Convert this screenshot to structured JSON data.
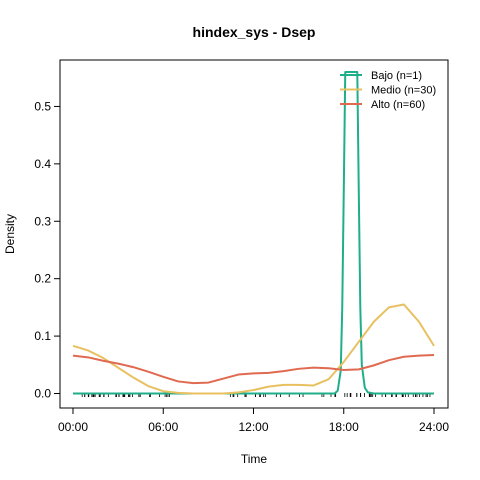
{
  "chart_data": {
    "type": "line",
    "title": "hindex_sys - Dsep",
    "xlabel": "Time",
    "ylabel": "Density",
    "xlim": [
      0,
      24
    ],
    "ylim": [
      0,
      0.56
    ],
    "x_ticks": [
      0,
      6,
      12,
      18,
      24
    ],
    "x_tick_labels": [
      "00:00",
      "06:00",
      "12:00",
      "18:00",
      "24:00"
    ],
    "y_ticks": [
      0.0,
      0.1,
      0.2,
      0.3,
      0.4,
      0.5
    ],
    "y_tick_labels": [
      "0.0",
      "0.1",
      "0.2",
      "0.3",
      "0.4",
      "0.5"
    ],
    "grid": false,
    "legend_position": "top-right",
    "series": [
      {
        "name": "Bajo (n=1)",
        "color": "#1fae8a",
        "x": [
          0,
          17.4,
          17.6,
          17.8,
          17.9,
          18.0,
          18.1,
          18.3,
          18.5,
          18.7,
          18.9,
          19.0,
          19.1,
          19.2,
          19.4,
          19.6,
          20.0,
          24
        ],
        "y": [
          0,
          0,
          0.005,
          0.04,
          0.15,
          0.35,
          0.56,
          0.56,
          0.56,
          0.56,
          0.56,
          0.35,
          0.15,
          0.05,
          0.01,
          0.002,
          0,
          0
        ]
      },
      {
        "name": "Medio (n=30)",
        "color": "#e8c060",
        "x": [
          0,
          1,
          2,
          3,
          4,
          5,
          6,
          7,
          8,
          9,
          10,
          11,
          12,
          13,
          14,
          15,
          16,
          17,
          18,
          19,
          20,
          21,
          22,
          23,
          24
        ],
        "y": [
          0.083,
          0.075,
          0.062,
          0.045,
          0.028,
          0.013,
          0.004,
          0.001,
          0.0,
          0.0,
          0.0,
          0.002,
          0.006,
          0.012,
          0.015,
          0.015,
          0.014,
          0.025,
          0.055,
          0.09,
          0.125,
          0.15,
          0.155,
          0.125,
          0.083
        ]
      },
      {
        "name": "Alto (n=60)",
        "color": "#e06a50",
        "x": [
          0,
          1,
          2,
          3,
          4,
          5,
          6,
          7,
          8,
          9,
          10,
          11,
          12,
          13,
          14,
          15,
          16,
          17,
          18,
          19,
          20,
          21,
          22,
          23,
          24
        ],
        "y": [
          0.066,
          0.063,
          0.057,
          0.052,
          0.046,
          0.038,
          0.029,
          0.021,
          0.018,
          0.019,
          0.026,
          0.033,
          0.035,
          0.036,
          0.039,
          0.043,
          0.045,
          0.044,
          0.041,
          0.042,
          0.049,
          0.058,
          0.064,
          0.066,
          0.067
        ]
      }
    ]
  }
}
